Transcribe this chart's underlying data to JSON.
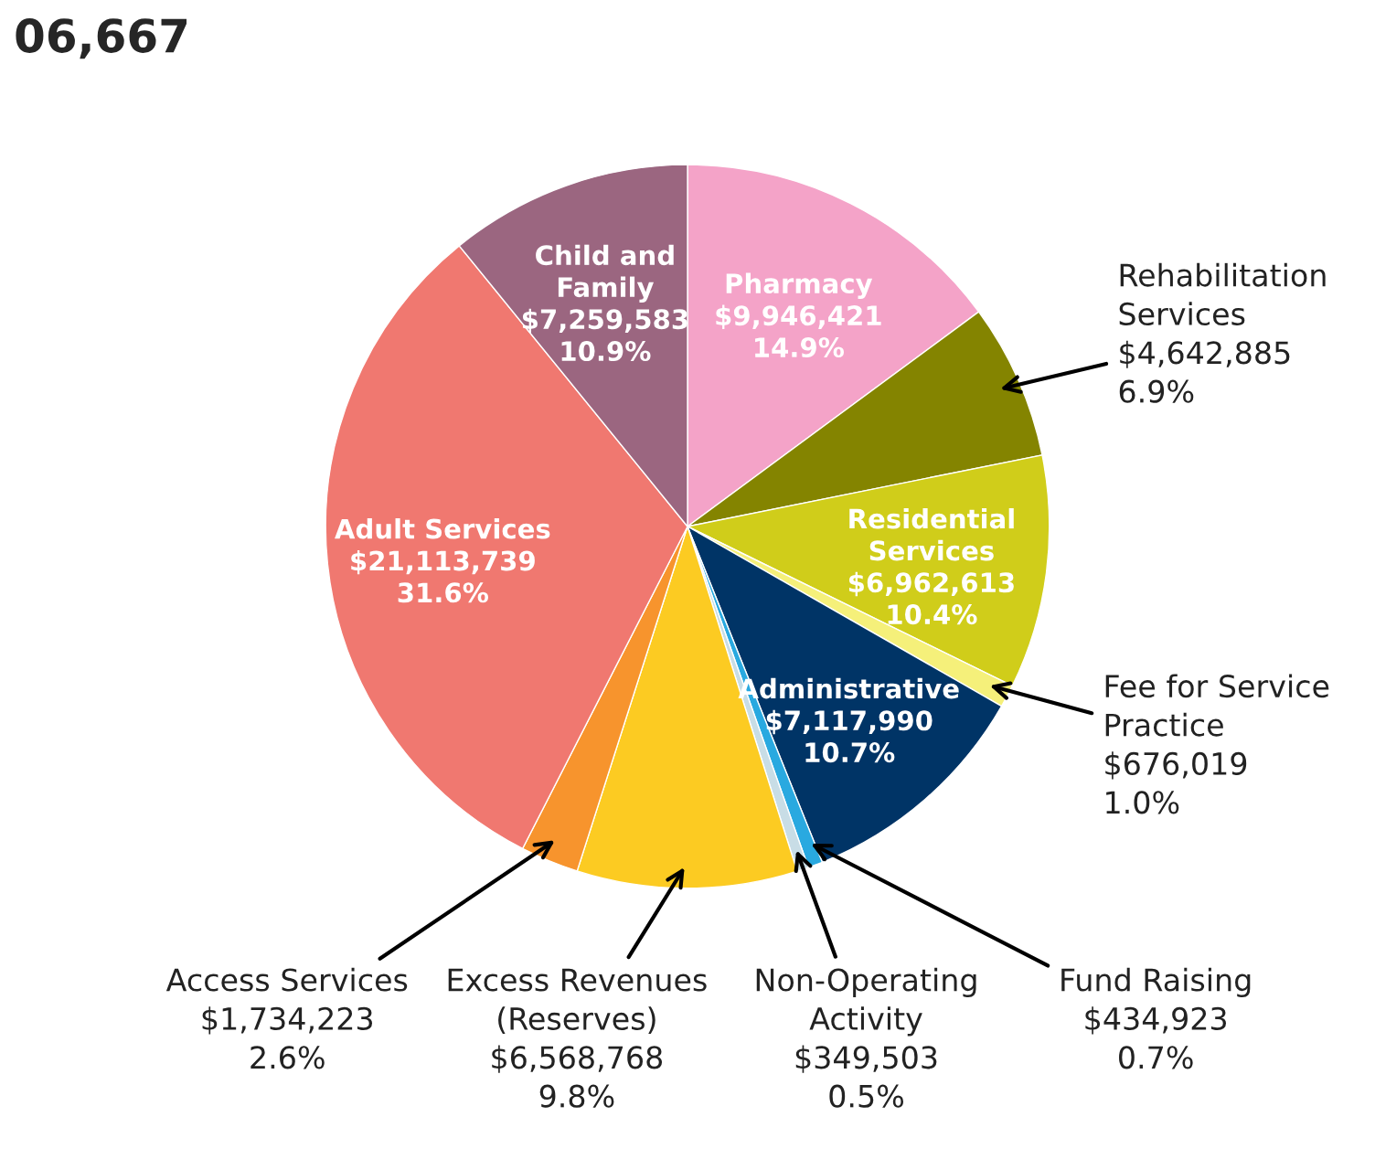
{
  "chart_data": {
    "type": "pie",
    "title": "06,667",
    "categories": [
      "Pharmacy",
      "Rehabilitation\nServices",
      "Residential\nServices",
      "Fee for Service\nPractice",
      "Administrative",
      "Fund Raising",
      "Non-Operating\nActivity",
      "Excess Revenues\n(Reserves)",
      "Access Services",
      "Adult Services",
      "Child and\nFamily"
    ],
    "values": [
      9946421,
      4642885,
      6962613,
      676019,
      7117990,
      434923,
      349503,
      6568768,
      1734223,
      21113739,
      7259583
    ],
    "value_labels": [
      "$9,946,421\n14.9%",
      "$4,642,885\n6.9%",
      "$6,962,613\n10.4%",
      "$676,019\n1.0%",
      "$7,117,990\n10.7%",
      "$434,923\n0.7%",
      "$349,503\n0.5%",
      "$6,568,768\n9.8%",
      "$1,734,223\n2.6%",
      "$21,113,739\n31.6%",
      "$7,259,583\n10.9%"
    ],
    "colors": [
      "#f4a3c8",
      "#848400",
      "#d0cd1a",
      "#f5f07a",
      "#003466",
      "#29a9e0",
      "#c8dde6",
      "#fccb22",
      "#f7942d",
      "#f07870",
      "#9b6680"
    ],
    "legend": false
  }
}
